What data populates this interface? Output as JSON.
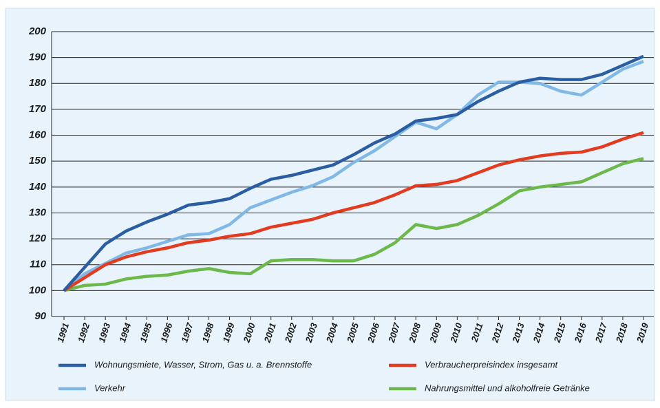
{
  "chart_data": {
    "type": "line",
    "categories": [
      "1991",
      "1992",
      "1993",
      "1994",
      "1995",
      "1996",
      "1997",
      "1998",
      "1999",
      "2000",
      "2001",
      "2002",
      "2003",
      "2004",
      "2005",
      "2006",
      "2007",
      "2008",
      "2009",
      "2010",
      "2011",
      "2012",
      "2013",
      "2014",
      "2015",
      "2016",
      "2017",
      "2018",
      "2019"
    ],
    "series": [
      {
        "name": "Wohnungsmiete, Wasser, Strom, Gas u. a. Brennstoffe",
        "color": "#2b5da3",
        "values": [
          100,
          109,
          118,
          123,
          126.5,
          129.5,
          133,
          134,
          135.5,
          139.5,
          143,
          144.5,
          146.5,
          148.5,
          152.5,
          157,
          160.5,
          165.5,
          166.5,
          168,
          173,
          177,
          180.5,
          182,
          181.5,
          181.5,
          183.5,
          187,
          190.5
        ]
      },
      {
        "name": "Verbraucherpreisindex insgesamt",
        "color": "#e23b1f",
        "values": [
          100,
          105,
          110,
          113,
          115,
          116.5,
          118.5,
          119.5,
          121,
          122,
          124.5,
          126,
          127.5,
          130,
          132,
          134,
          137,
          140.5,
          141,
          142.5,
          145.5,
          148.5,
          150.5,
          152,
          153,
          153.5,
          155.5,
          158.5,
          161
        ]
      },
      {
        "name": "Verkehr",
        "color": "#82b8e6",
        "values": [
          100,
          106.5,
          110.5,
          114.5,
          116.5,
          119,
          121.5,
          122,
          125.5,
          132,
          135,
          138,
          140.5,
          144,
          149.5,
          154,
          159.5,
          165,
          162.5,
          168,
          175.5,
          180.5,
          180.5,
          180,
          177,
          175.5,
          180.5,
          185.5,
          188.5
        ]
      },
      {
        "name": "Nahrungsmittel und alkoholfreie Getränke",
        "color": "#6cb84b",
        "values": [
          100,
          102,
          102.5,
          104.5,
          105.5,
          106,
          107.5,
          108.5,
          107,
          106.5,
          111.5,
          112,
          112,
          111.5,
          111.5,
          114,
          118.5,
          125.5,
          124,
          125.5,
          129,
          133.5,
          138.5,
          140,
          141,
          142,
          145.5,
          149,
          151
        ]
      }
    ],
    "ylim": [
      90,
      200
    ],
    "yticks": [
      90,
      100,
      110,
      120,
      130,
      140,
      150,
      160,
      170,
      180,
      190,
      200
    ],
    "grid": true
  }
}
